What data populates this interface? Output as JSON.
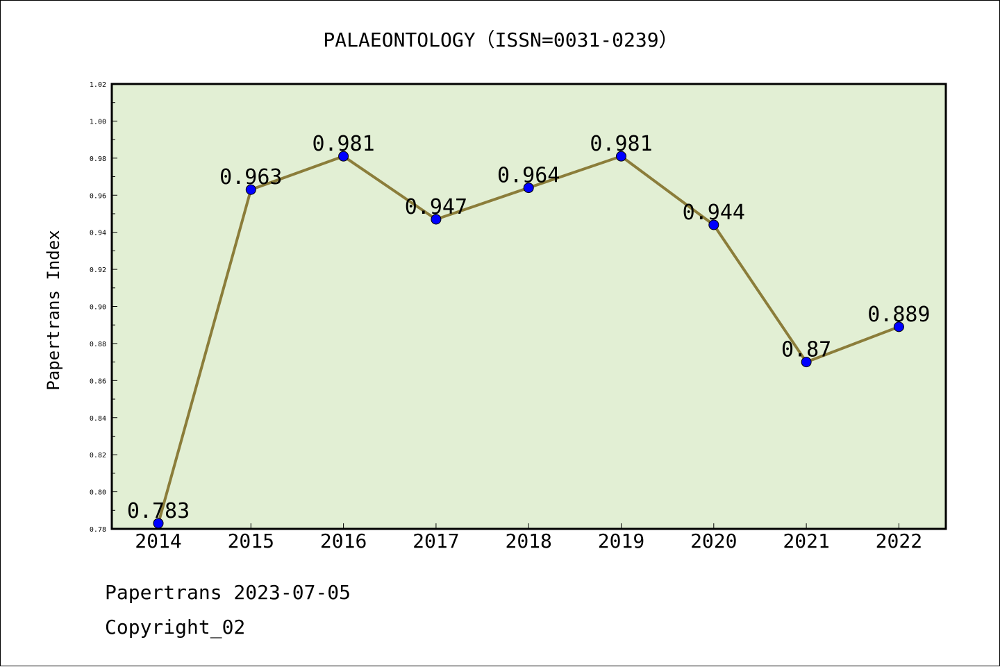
{
  "chart_data": {
    "type": "line",
    "title": "PALAEONTOLOGY（ISSN=0031-0239）",
    "ylabel": "Papertrans Index",
    "xlabel": "",
    "categories": [
      "2014",
      "2015",
      "2016",
      "2017",
      "2018",
      "2019",
      "2020",
      "2021",
      "2022"
    ],
    "series": [
      {
        "values": [
          0.783,
          0.963,
          0.981,
          0.947,
          0.964,
          0.981,
          0.944,
          0.87,
          0.889
        ]
      }
    ],
    "data_labels": [
      "0.783",
      "0.963",
      "0.981",
      "0.947",
      "0.964",
      "0.981",
      "0.944",
      "0.87",
      "0.889"
    ],
    "ylim": [
      0.78,
      1.02
    ],
    "yticks": [
      0.78,
      0.8,
      0.82,
      0.84,
      0.86,
      0.88,
      0.9,
      0.92,
      0.94,
      0.96,
      0.98,
      1.0,
      1.02
    ],
    "ytick_labels": [
      "0.78",
      "0.80",
      "0.82",
      "0.84",
      "0.86",
      "0.88",
      "0.90",
      "0.92",
      "0.94",
      "0.96",
      "0.98",
      "1.00",
      "1.02"
    ],
    "colors": {
      "plot_background": "#e2efd4",
      "line": "#8b7d3a",
      "marker": "#0000ff"
    },
    "grid": false
  },
  "footer": {
    "line1": "Papertrans 2023-07-05",
    "line2": "Copyright_02"
  }
}
